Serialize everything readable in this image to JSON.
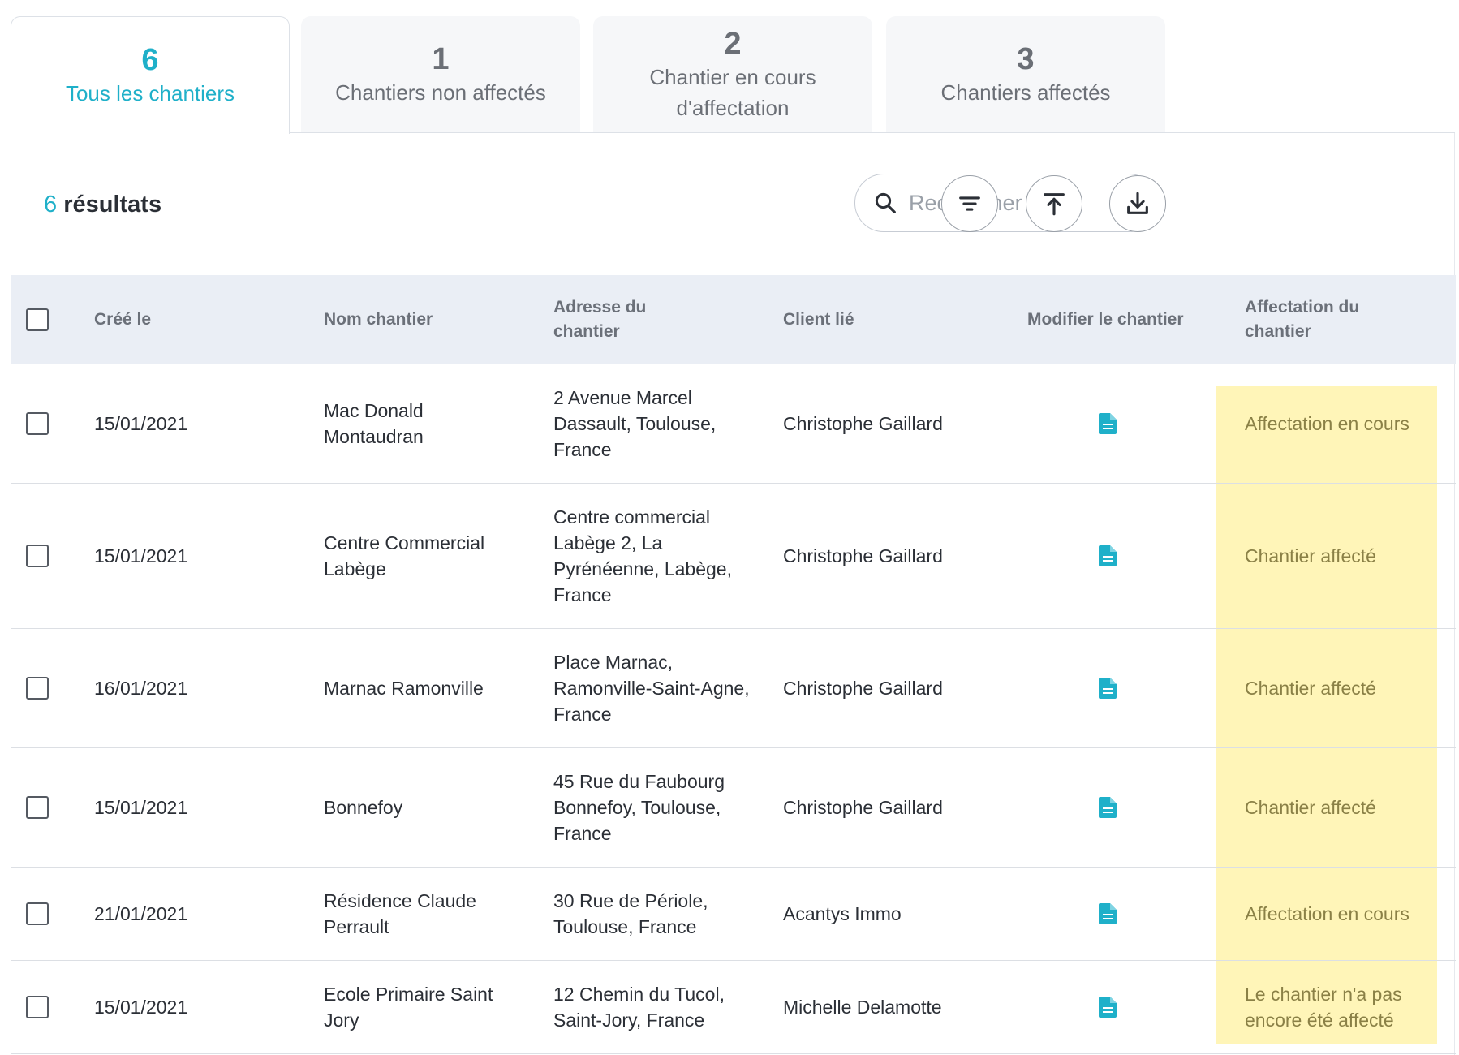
{
  "tabs": [
    {
      "count": "6",
      "label": "Tous les chantiers",
      "active": true
    },
    {
      "count": "1",
      "label": "Chantiers non affectés"
    },
    {
      "count": "2",
      "label": "Chantier en cours d'affectation"
    },
    {
      "count": "3",
      "label": "Chantiers affectés"
    }
  ],
  "toolbar": {
    "results_count": "6",
    "results_label": "résultats",
    "search_placeholder": "Rechercher ...",
    "search_value": ""
  },
  "table": {
    "headers": {
      "created": "Créé le",
      "name": "Nom chantier",
      "address": "Adresse du chantier",
      "client": "Client lié",
      "edit": "Modifier le chantier",
      "assignment": "Affectation du chantier"
    },
    "rows": [
      {
        "created": "15/01/2021",
        "name": "Mac Donald Montaudran",
        "address": "2 Avenue Marcel Dassault, Toulouse, France",
        "client": "Christophe Gaillard",
        "status": "Affectation en cours"
      },
      {
        "created": "15/01/2021",
        "name": "Centre Commercial Labège",
        "address": "Centre commercial Labège 2, La Pyrénéenne, Labège, France",
        "client": "Christophe Gaillard",
        "status": "Chantier affecté"
      },
      {
        "created": "16/01/2021",
        "name": "Marnac Ramonville",
        "address": "Place Marnac, Ramonville-Saint-Agne, France",
        "client": "Christophe Gaillard",
        "status": "Chantier affecté"
      },
      {
        "created": "15/01/2021",
        "name": "Bonnefoy",
        "address": "45 Rue du Faubourg Bonnefoy, Toulouse, France",
        "client": "Christophe Gaillard",
        "status": "Chantier affecté"
      },
      {
        "created": "21/01/2021",
        "name": "Résidence Claude Perrault",
        "address": "30 Rue de Périole, Toulouse, France",
        "client": "Acantys Immo",
        "status": "Affectation en cours"
      },
      {
        "created": "15/01/2021",
        "name": "Ecole Primaire Saint Jory",
        "address": "12 Chemin du Tucol, Saint-Jory, France",
        "client": "Michelle Delamotte",
        "status": "Le chantier n'a pas encore été affecté"
      }
    ]
  },
  "icons": {
    "search": "search-icon",
    "filter": "filter-icon",
    "upload": "upload-icon",
    "download": "download-icon",
    "edit": "document-icon"
  },
  "colors": {
    "accent": "#1fb0c9",
    "status_highlight": "#fff5b8",
    "header_bg": "#eaeef5"
  }
}
